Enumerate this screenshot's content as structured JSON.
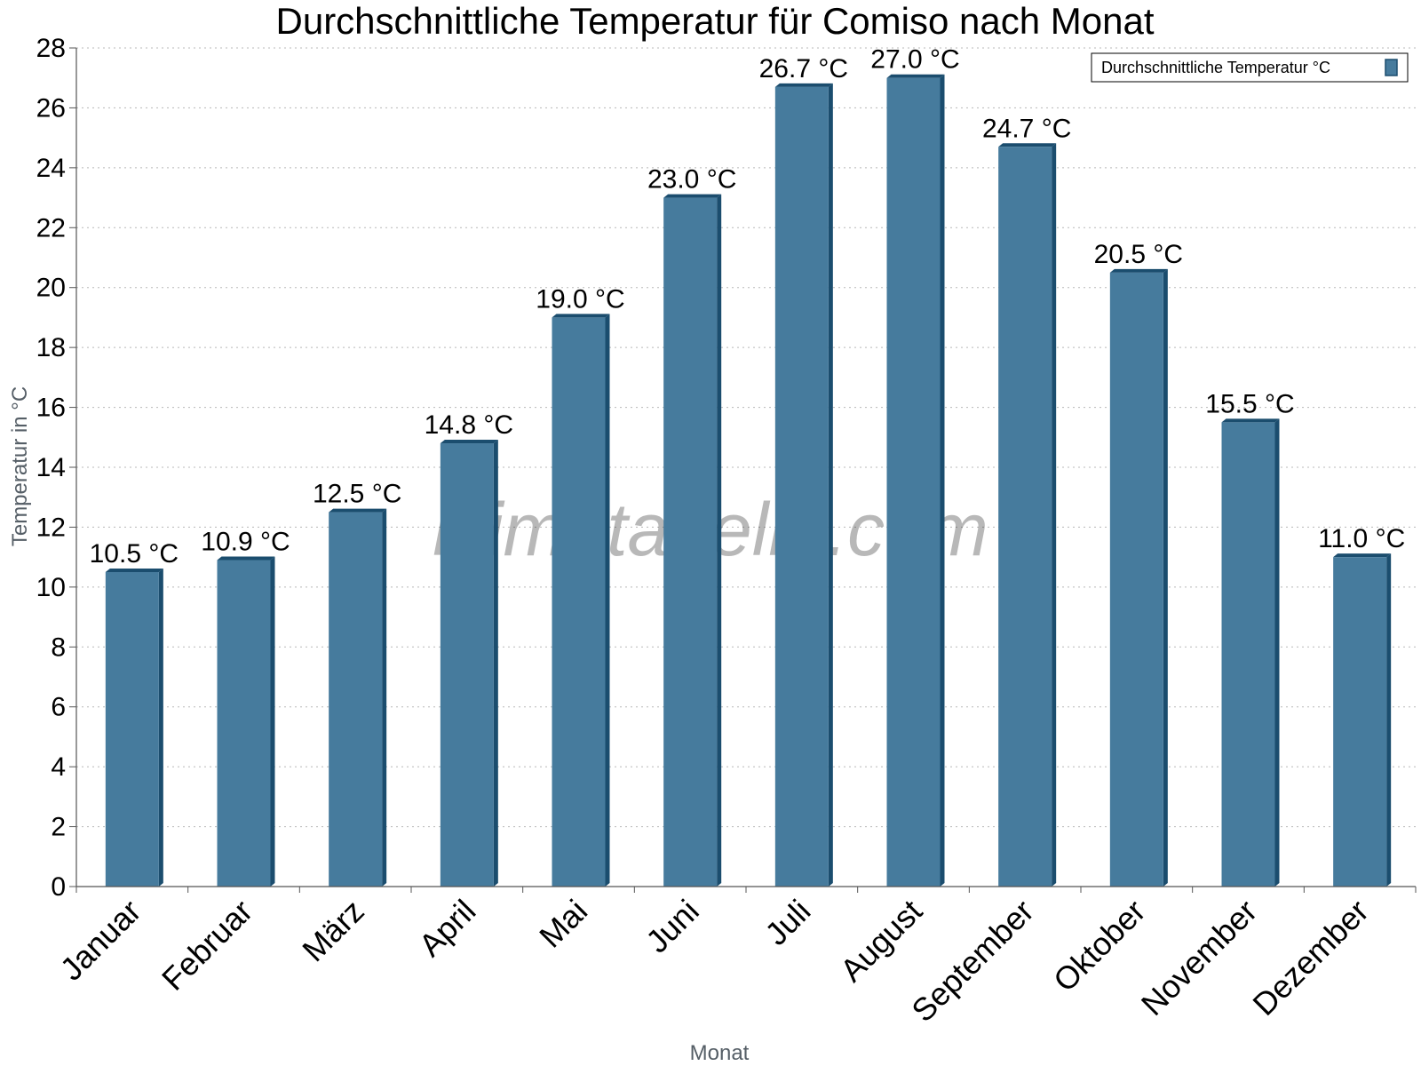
{
  "chart_data": {
    "type": "bar",
    "title": "Durchschnittliche Temperatur für Comiso nach Monat",
    "xlabel": "Monat",
    "ylabel": "Temperatur in °C",
    "ylim": [
      0,
      28
    ],
    "yticks": [
      0,
      2,
      4,
      6,
      8,
      10,
      12,
      14,
      16,
      18,
      20,
      22,
      24,
      26,
      28
    ],
    "grid": true,
    "legend_position": "top-right",
    "categories": [
      "Januar",
      "Februar",
      "März",
      "April",
      "Mai",
      "Juni",
      "Juli",
      "August",
      "September",
      "Oktober",
      "November",
      "Dezember"
    ],
    "series": [
      {
        "name": "Durchschnittliche Temperatur °C",
        "values": [
          10.5,
          10.9,
          12.5,
          14.8,
          19.0,
          23.0,
          26.7,
          27.0,
          24.7,
          20.5,
          15.5,
          11.0
        ],
        "labels": [
          "10.5 °C",
          "10.9 °C",
          "12.5 °C",
          "14.8 °C",
          "19.0 °C",
          "23.0 °C",
          "26.7 °C",
          "27.0 °C",
          "24.7 °C",
          "20.5 °C",
          "15.5 °C",
          "11.0 °C"
        ],
        "color": "#467b9d",
        "edge_color": "#1b4d6e"
      }
    ]
  },
  "watermark": "klimatabelle.com"
}
